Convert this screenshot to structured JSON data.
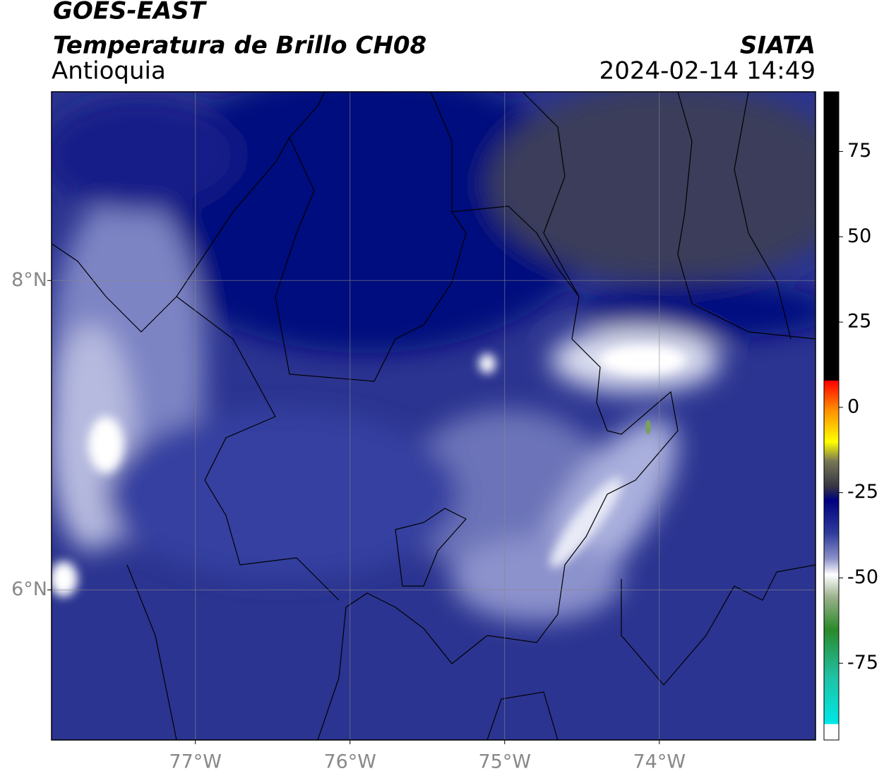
{
  "header": {
    "title": "GOES-EAST",
    "subtitle": "Temperatura de Brillo CH08",
    "region": "Antioquia",
    "source": "SIATA",
    "datetime": "2024-02-14 14:49"
  },
  "map": {
    "xlim": [
      -77.93,
      -72.99
    ],
    "ylim": [
      5.03,
      9.22
    ],
    "xticks": [
      {
        "value": -77,
        "label": "77°W"
      },
      {
        "value": -76,
        "label": "76°W"
      },
      {
        "value": -75,
        "label": "75°W"
      },
      {
        "value": -74,
        "label": "74°W"
      }
    ],
    "yticks": [
      {
        "value": 8,
        "label": "8°N"
      },
      {
        "value": 6,
        "label": "6°N"
      }
    ],
    "grid": true
  },
  "colorbar": {
    "range": [
      -97.5,
      92.5
    ],
    "ticks": [
      75,
      50,
      25,
      0,
      -25,
      -50,
      -75
    ]
  }
}
